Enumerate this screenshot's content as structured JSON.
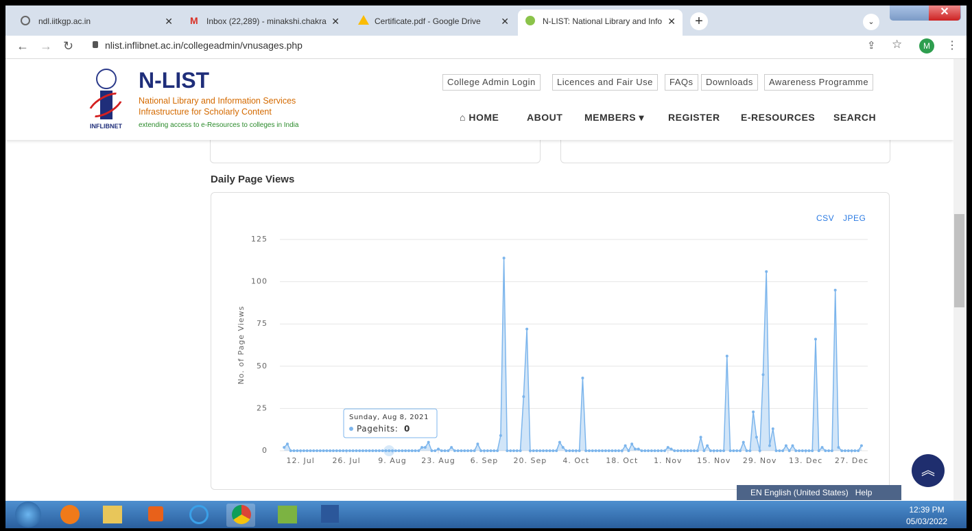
{
  "browser": {
    "tabs": [
      "ndl.iitkgp.ac.in",
      "Inbox (22,289) - minakshi.chakra",
      "Certificate.pdf - Google Drive",
      "N-LIST: National Library and Info"
    ],
    "url": "nlist.inflibnet.ac.in/collegeadmin/vnusages.php",
    "profile": "M"
  },
  "site": {
    "logo_text": "N-LIST",
    "logo_caption": "INFLIBNET",
    "tagline1": "National Library and Information Services",
    "tagline2": "Infrastructure for Scholarly Content",
    "tagline3": "extending access to e-Resources to colleges in India",
    "top_links": [
      "College Admin Login",
      "Licences and Fair Use",
      "FAQs",
      "Downloads",
      "Awareness Programme"
    ],
    "nav": [
      "HOME",
      "ABOUT",
      "MEMBERS",
      "REGISTER",
      "E-RESOURCES",
      "SEARCH"
    ]
  },
  "chart_data": {
    "type": "area",
    "title": "Daily Page Views",
    "y_label": "No. of Page Views",
    "exports": [
      "CSV",
      "JPEG"
    ],
    "color": "#7cb5ec",
    "grid": true,
    "xlim": [
      186.7,
      365.9
    ],
    "xticks": [
      {
        "value": 193,
        "label": "12. Jul"
      },
      {
        "value": 207,
        "label": "26. Jul"
      },
      {
        "value": 221,
        "label": "9. Aug"
      },
      {
        "value": 235,
        "label": "23. Aug"
      },
      {
        "value": 249,
        "label": "6. Sep"
      },
      {
        "value": 263,
        "label": "20. Sep"
      },
      {
        "value": 277,
        "label": "4. Oct"
      },
      {
        "value": 291,
        "label": "18. Oct"
      },
      {
        "value": 305,
        "label": "1. Nov"
      },
      {
        "value": 319,
        "label": "15. Nov"
      },
      {
        "value": 333,
        "label": "29. Nov"
      },
      {
        "value": 347,
        "label": "13. Dec"
      },
      {
        "value": 361,
        "label": "27. Dec"
      }
    ],
    "ylim": [
      0,
      125
    ],
    "yticks": [
      0,
      25,
      50,
      75,
      100,
      125
    ],
    "x": [
      188,
      189,
      190,
      191,
      192,
      193,
      194,
      195,
      196,
      197,
      198,
      199,
      200,
      201,
      202,
      203,
      204,
      205,
      206,
      207,
      208,
      209,
      210,
      211,
      212,
      213,
      214,
      215,
      216,
      217,
      218,
      219,
      220,
      221,
      222,
      223,
      224,
      225,
      226,
      227,
      228,
      229,
      230,
      231,
      232,
      233,
      234,
      235,
      236,
      237,
      238,
      239,
      240,
      241,
      242,
      243,
      244,
      245,
      246,
      247,
      248,
      249,
      250,
      251,
      252,
      253,
      254,
      255,
      256,
      257,
      258,
      259,
      260,
      261,
      262,
      263,
      264,
      265,
      266,
      267,
      268,
      269,
      270,
      271,
      272,
      273,
      274,
      275,
      276,
      277,
      278,
      279,
      280,
      281,
      282,
      283,
      284,
      285,
      286,
      287,
      288,
      289,
      290,
      291,
      292,
      293,
      294,
      295,
      296,
      297,
      298,
      299,
      300,
      301,
      302,
      303,
      304,
      305,
      306,
      307,
      308,
      309,
      310,
      311,
      312,
      313,
      314,
      315,
      316,
      317,
      318,
      319,
      320,
      321,
      322,
      323,
      324,
      325,
      326,
      327,
      328,
      329,
      330,
      331,
      332,
      333,
      334,
      335,
      336,
      337,
      338,
      339,
      340,
      341,
      342,
      343,
      344,
      345,
      346,
      347,
      348,
      349,
      350,
      351,
      352,
      353,
      354,
      355,
      356,
      357,
      358,
      359,
      360,
      361,
      362,
      363,
      364
    ],
    "values": [
      2,
      4,
      0,
      0,
      0,
      0,
      0,
      0,
      0,
      0,
      0,
      0,
      0,
      0,
      0,
      0,
      0,
      0,
      0,
      0,
      0,
      0,
      0,
      0,
      0,
      0,
      0,
      0,
      0,
      0,
      0,
      0,
      0,
      0,
      0,
      0,
      0,
      0,
      0,
      0,
      0,
      0,
      2,
      2,
      5,
      0,
      0,
      1,
      0,
      0,
      0,
      2,
      0,
      0,
      0,
      0,
      0,
      0,
      0,
      4,
      0,
      0,
      0,
      0,
      0,
      0,
      9,
      114,
      0,
      0,
      0,
      0,
      0,
      32,
      72,
      0,
      0,
      0,
      0,
      0,
      0,
      0,
      0,
      0,
      5,
      2,
      0,
      0,
      0,
      0,
      0,
      43,
      0,
      0,
      0,
      0,
      0,
      0,
      0,
      0,
      0,
      0,
      0,
      0,
      3,
      0,
      4,
      1,
      1,
      0,
      0,
      0,
      0,
      0,
      0,
      0,
      0,
      2,
      1,
      0,
      0,
      0,
      0,
      0,
      0,
      0,
      0,
      8,
      0,
      3,
      0,
      0,
      0,
      0,
      0,
      56,
      0,
      0,
      0,
      0,
      5,
      0,
      0,
      23,
      8,
      0,
      45,
      106,
      3,
      13,
      0,
      0,
      0,
      3,
      0,
      3,
      0,
      0,
      0,
      0,
      0,
      0,
      66,
      0,
      2,
      0,
      0,
      0,
      95,
      2,
      0,
      0,
      0,
      0,
      0,
      0,
      3
    ],
    "tooltip": {
      "title": "Sunday, Aug 8, 2021",
      "label": "Pagehits:",
      "value": 0
    }
  },
  "taskbar": {
    "language": "EN English (United States)",
    "help": "Help",
    "time": "12:39 PM",
    "date": "05/03/2022"
  }
}
